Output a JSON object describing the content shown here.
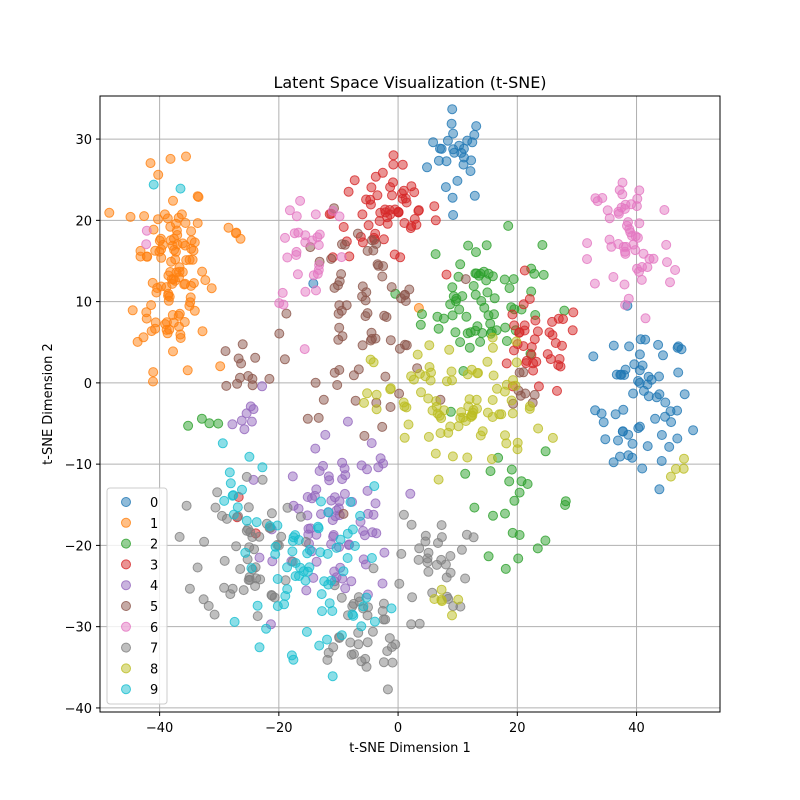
{
  "chart_data": {
    "type": "scatter",
    "title": "Latent Space Visualization (t-SNE)",
    "xlabel": "t-SNE Dimension 1",
    "ylabel": "t-SNE Dimension 2",
    "xlim": [
      -50,
      54
    ],
    "ylim": [
      -40.5,
      35.3
    ],
    "xticks": [
      -40,
      -20,
      0,
      20,
      40
    ],
    "yticks": [
      -40,
      -30,
      -20,
      -10,
      0,
      10,
      20,
      30
    ],
    "grid": true,
    "legend_position": "lower-left",
    "marker_alpha": 0.5,
    "series": [
      {
        "name": "0",
        "color": "#1f77b4",
        "clusters": [
          {
            "cx": 10,
            "cy": 28,
            "sx": 2.5,
            "sy": 2.8,
            "n": 28
          },
          {
            "cx": 41,
            "cy": -3,
            "sx": 4,
            "sy": 5,
            "n": 64
          },
          {
            "cx": -14,
            "cy": 12,
            "sx": 0.5,
            "sy": 0.5,
            "n": 1
          }
        ]
      },
      {
        "name": "1",
        "color": "#ff7f0e",
        "clusters": [
          {
            "cx": -38,
            "cy": 14,
            "sx": 3,
            "sy": 6,
            "n": 110
          },
          {
            "cx": -27,
            "cy": 18.5,
            "sx": 0.8,
            "sy": 0.5,
            "n": 4
          },
          {
            "cx": 5,
            "cy": 10,
            "sx": 1,
            "sy": 1,
            "n": 1
          }
        ]
      },
      {
        "name": "2",
        "color": "#2ca02c",
        "clusters": [
          {
            "cx": 14,
            "cy": 10,
            "sx": 5,
            "sy": 4,
            "n": 70
          },
          {
            "cx": 20,
            "cy": -15,
            "sx": 5,
            "sy": 3,
            "n": 22
          },
          {
            "cx": -32,
            "cy": -5,
            "sx": 2,
            "sy": 1,
            "n": 4
          }
        ]
      },
      {
        "name": "3",
        "color": "#d62728",
        "clusters": [
          {
            "cx": -2,
            "cy": 21,
            "sx": 4.5,
            "sy": 3,
            "n": 60
          },
          {
            "cx": 23,
            "cy": 4,
            "sx": 4,
            "sy": 3,
            "n": 40
          },
          {
            "cx": -24,
            "cy": -17,
            "sx": 2,
            "sy": 2,
            "n": 3
          }
        ]
      },
      {
        "name": "4",
        "color": "#9467bd",
        "clusters": [
          {
            "cx": -10,
            "cy": -17,
            "sx": 5,
            "sy": 5,
            "n": 80
          },
          {
            "cx": -24,
            "cy": -4,
            "sx": 2,
            "sy": 1.5,
            "n": 8
          }
        ]
      },
      {
        "name": "5",
        "color": "#8c564b",
        "clusters": [
          {
            "cx": -6,
            "cy": 8,
            "sx": 5.5,
            "sy": 6,
            "n": 70
          },
          {
            "cx": -26,
            "cy": 2,
            "sx": 3,
            "sy": 2,
            "n": 14
          },
          {
            "cx": 20,
            "cy": -2,
            "sx": 2,
            "sy": 2,
            "n": 8
          }
        ]
      },
      {
        "name": "6",
        "color": "#e377c2",
        "clusters": [
          {
            "cx": 39,
            "cy": 17,
            "sx": 3.5,
            "sy": 5,
            "n": 55
          },
          {
            "cx": -15,
            "cy": 17,
            "sx": 3.5,
            "sy": 4.5,
            "n": 30
          },
          {
            "cx": -42,
            "cy": 17,
            "sx": 1,
            "sy": 1,
            "n": 2
          }
        ]
      },
      {
        "name": "7",
        "color": "#7f7f7f",
        "clusters": [
          {
            "cx": -25,
            "cy": -20,
            "sx": 4,
            "sy": 4.5,
            "n": 55
          },
          {
            "cx": -7,
            "cy": -31,
            "sx": 4.5,
            "sy": 3.5,
            "n": 40
          },
          {
            "cx": 6,
            "cy": -22,
            "sx": 3,
            "sy": 3,
            "n": 30
          }
        ]
      },
      {
        "name": "8",
        "color": "#bcbd22",
        "clusters": [
          {
            "cx": 10,
            "cy": -3,
            "sx": 7,
            "sy": 4,
            "n": 90
          },
          {
            "cx": 46,
            "cy": -11,
            "sx": 2,
            "sy": 1,
            "n": 4
          },
          {
            "cx": 9,
            "cy": -27,
            "sx": 2,
            "sy": 1,
            "n": 6
          }
        ]
      },
      {
        "name": "9",
        "color": "#17becf",
        "clusters": [
          {
            "cx": -14,
            "cy": -23,
            "sx": 6,
            "sy": 5,
            "n": 70
          },
          {
            "cx": -28,
            "cy": -14,
            "sx": 2,
            "sy": 3,
            "n": 12
          },
          {
            "cx": -38,
            "cy": 24,
            "sx": 1,
            "sy": 1,
            "n": 2
          }
        ]
      }
    ]
  }
}
